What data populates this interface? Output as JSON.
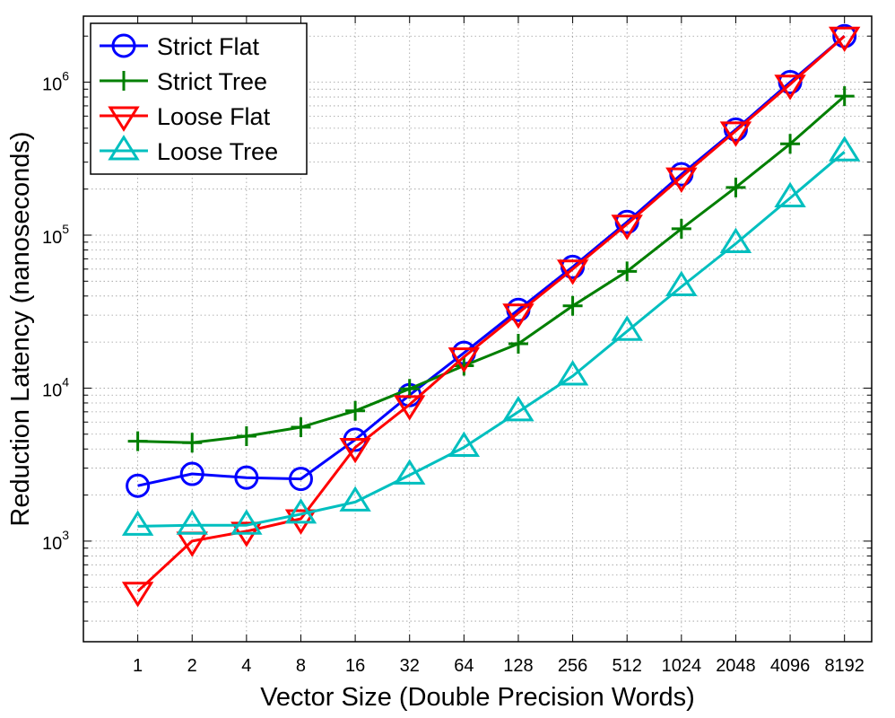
{
  "chart_data": {
    "type": "line",
    "title": "",
    "xlabel": "Vector Size (Double Precision Words)",
    "ylabel": "Reduction Latency (nanoseconds)",
    "x_scale": "log2",
    "y_scale": "log10",
    "x": [
      1,
      2,
      4,
      8,
      16,
      32,
      64,
      128,
      256,
      512,
      1024,
      2048,
      4096,
      8192
    ],
    "x_tick_labels": [
      "1",
      "2",
      "4",
      "8",
      "16",
      "32",
      "64",
      "128",
      "256",
      "512",
      "1024",
      "2048",
      "4096",
      "8192"
    ],
    "xlim": [
      0.5,
      11585
    ],
    "ylim": [
      220,
      2700000
    ],
    "y_ticks": [
      1000,
      10000,
      100000,
      1000000
    ],
    "y_tick_labels": [
      {
        "base": "10",
        "exp": "3"
      },
      {
        "base": "10",
        "exp": "4"
      },
      {
        "base": "10",
        "exp": "5"
      },
      {
        "base": "10",
        "exp": "6"
      }
    ],
    "grid": true,
    "legend_position": "top-left",
    "series": [
      {
        "name": "Strict Flat",
        "color": "#0000ff",
        "marker": "circle",
        "values": [
          2300,
          2750,
          2600,
          2550,
          4600,
          9000,
          17000,
          32500,
          62000,
          122000,
          250000,
          490000,
          1000000,
          2000000
        ]
      },
      {
        "name": "Strict Tree",
        "color": "#007f00",
        "marker": "plus",
        "values": [
          4500,
          4400,
          4850,
          5550,
          7100,
          9900,
          14000,
          19500,
          34500,
          58000,
          110000,
          205000,
          395000,
          810000
        ]
      },
      {
        "name": "Loose Flat",
        "color": "#ff0000",
        "marker": "triangle-down",
        "values": [
          470,
          1000,
          1160,
          1400,
          4100,
          7800,
          16000,
          31000,
          60000,
          118000,
          240000,
          480000,
          970000,
          2000000
        ]
      },
      {
        "name": "Loose Tree",
        "color": "#00bfbf",
        "marker": "triangle-up",
        "values": [
          1250,
          1270,
          1270,
          1500,
          1800,
          2700,
          4100,
          7000,
          12000,
          23500,
          46000,
          88000,
          175000,
          350000
        ]
      }
    ]
  }
}
